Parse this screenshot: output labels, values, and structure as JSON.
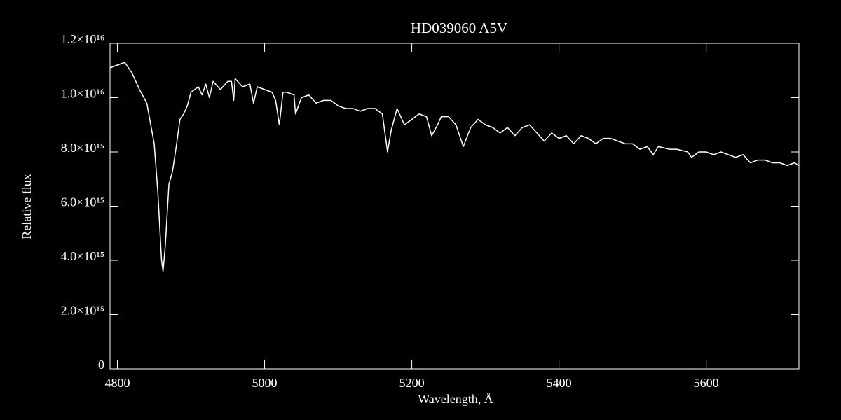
{
  "chart_data": {
    "type": "line",
    "title": "HD039060   A5V",
    "xlabel": "Wavelength, Å",
    "ylabel": "Relative flux",
    "color": "#ffffff",
    "x": [
      4790,
      4800,
      4810,
      4820,
      4830,
      4840,
      4850,
      4855,
      4860,
      4862,
      4865,
      4870,
      4875,
      4880,
      4885,
      4890,
      4895,
      4900,
      4910,
      4915,
      4920,
      4925,
      4930,
      4940,
      4950,
      4955,
      4958,
      4960,
      4970,
      4980,
      4985,
      4990,
      5000,
      5010,
      5015,
      5020,
      5025,
      5030,
      5040,
      5042,
      5050,
      5060,
      5070,
      5080,
      5090,
      5100,
      5110,
      5120,
      5130,
      5140,
      5150,
      5160,
      5167,
      5172,
      5180,
      5190,
      5200,
      5210,
      5220,
      5227,
      5235,
      5240,
      5250,
      5260,
      5270,
      5280,
      5290,
      5300,
      5310,
      5320,
      5330,
      5340,
      5350,
      5360,
      5370,
      5380,
      5390,
      5400,
      5410,
      5420,
      5430,
      5440,
      5450,
      5460,
      5470,
      5480,
      5490,
      5500,
      5510,
      5520,
      5528,
      5535,
      5550,
      5560,
      5575,
      5580,
      5590,
      5600,
      5610,
      5620,
      5630,
      5640,
      5650,
      5660,
      5670,
      5680,
      5690,
      5700,
      5710,
      5720,
      5726
    ],
    "values": [
      1.11e+16,
      1.12e+16,
      1.13e+16,
      1.09e+16,
      1.03e+16,
      9800000000000000.0,
      8300000000000000.0,
      6500000000000000.0,
      4000000000000000.0,
      3600000000000000.0,
      4500000000000000.0,
      6800000000000000.0,
      7300000000000000.0,
      8200000000000000.0,
      9200000000000000.0,
      9400000000000000.0,
      9700000000000000.0,
      1.02e+16,
      1.04e+16,
      1.01e+16,
      1.05e+16,
      1e+16,
      1.06e+16,
      1.03e+16,
      1.06e+16,
      1.06e+16,
      9900000000000000.0,
      1.07e+16,
      1.04e+16,
      1.05e+16,
      9800000000000000.0,
      1.04e+16,
      1.03e+16,
      1.02e+16,
      9900000000000000.0,
      9000000000000000.0,
      1.02e+16,
      1.02e+16,
      1.01e+16,
      9400000000000000.0,
      1e+16,
      1.01e+16,
      9800000000000000.0,
      9900000000000000.0,
      9900000000000000.0,
      9700000000000000.0,
      9600000000000000.0,
      9600000000000000.0,
      9500000000000000.0,
      9600000000000000.0,
      9600000000000000.0,
      9400000000000000.0,
      8000000000000000.0,
      8800000000000000.0,
      9600000000000000.0,
      9000000000000000.0,
      9200000000000000.0,
      9400000000000000.0,
      9300000000000000.0,
      8600000000000000.0,
      9000000000000000.0,
      9300000000000000.0,
      9300000000000000.0,
      9000000000000000.0,
      8200000000000000.0,
      8900000000000000.0,
      9200000000000000.0,
      9000000000000000.0,
      8900000000000000.0,
      8700000000000000.0,
      8900000000000000.0,
      8600000000000000.0,
      8900000000000000.0,
      9000000000000000.0,
      8700000000000000.0,
      8400000000000000.0,
      8700000000000000.0,
      8500000000000000.0,
      8600000000000000.0,
      8300000000000000.0,
      8600000000000000.0,
      8500000000000000.0,
      8300000000000000.0,
      8500000000000000.0,
      8500000000000000.0,
      8400000000000000.0,
      8300000000000000.0,
      8300000000000000.0,
      8100000000000000.0,
      8200000000000000.0,
      7900000000000000.0,
      8200000000000000.0,
      8100000000000000.0,
      8100000000000000.0,
      8000000000000000.0,
      7800000000000000.0,
      8000000000000000.0,
      8000000000000000.0,
      7900000000000000.0,
      8000000000000000.0,
      7900000000000000.0,
      7800000000000000.0,
      7900000000000000.0,
      7600000000000000.0,
      7700000000000000.0,
      7700000000000000.0,
      7600000000000000.0,
      7600000000000000.0,
      7500000000000000.0,
      7600000000000000.0,
      7500000000000000.0
    ],
    "xlim": [
      4790,
      5726
    ],
    "xticks": [
      4800,
      5000,
      5200,
      5400,
      5600
    ],
    "ylim": [
      0,
      1.2e+16
    ],
    "yticks": [
      0,
      {
        "value": 2000000000000000.0,
        "label": "2.0×10¹⁵"
      },
      {
        "value": 4000000000000000.0,
        "label": "4.0×10¹⁵"
      },
      {
        "value": 6000000000000000.0,
        "label": "6.0×10¹⁵"
      },
      {
        "value": 8000000000000000.0,
        "label": "8.0×10¹⁵"
      },
      {
        "value": 1e+16,
        "label": "1.0×10¹⁶"
      },
      {
        "value": 1.2e+16,
        "label": "1.2×10¹⁶"
      }
    ]
  }
}
